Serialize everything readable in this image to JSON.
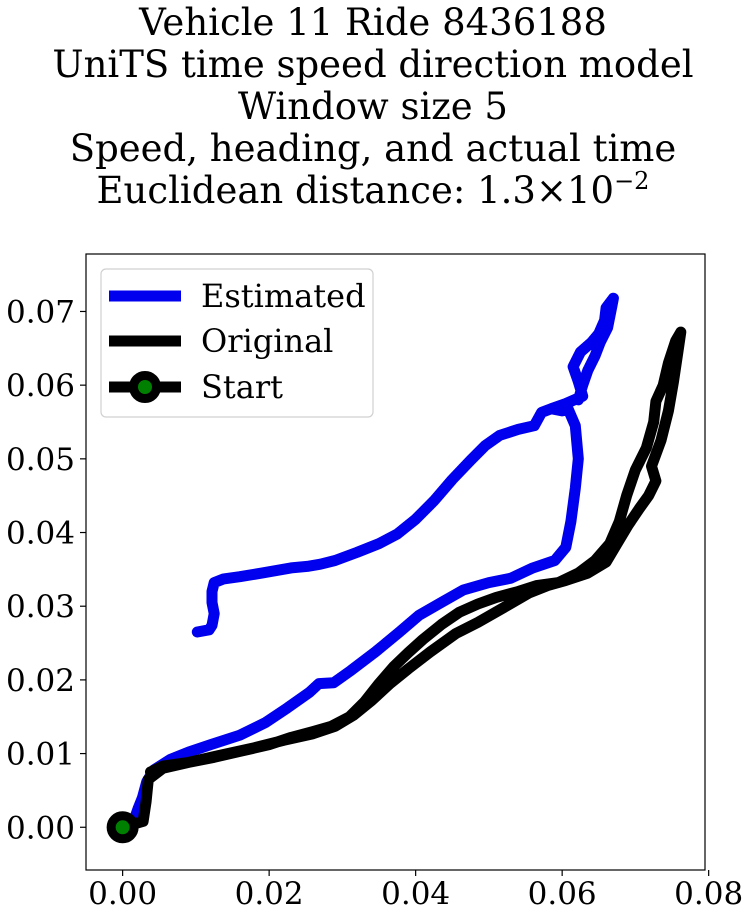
{
  "chart_data": {
    "type": "line",
    "title_lines": [
      "Vehicle 11 Ride 8436188",
      "UniTS time speed direction model",
      "Window size 5",
      "Speed, heading, and actual time"
    ],
    "title_distance_prefix": "Euclidean distance: 1.3",
    "title_distance_times": "×",
    "title_distance_base": "10",
    "title_distance_exponent": "−2",
    "xlabel": "",
    "ylabel": "",
    "xlim": [
      -0.005,
      0.0795
    ],
    "ylim": [
      -0.0058,
      0.0778
    ],
    "xticks": [
      0.0,
      0.02,
      0.04,
      0.06,
      0.08
    ],
    "xtick_labels": [
      "0.00",
      "0.02",
      "0.04",
      "0.06",
      "0.08"
    ],
    "yticks": [
      0.0,
      0.01,
      0.02,
      0.03,
      0.04,
      0.05,
      0.06,
      0.07
    ],
    "ytick_labels": [
      "0.00",
      "0.01",
      "0.02",
      "0.03",
      "0.04",
      "0.05",
      "0.06",
      "0.07"
    ],
    "legend_position": "upper-left",
    "series": [
      {
        "name": "Estimated",
        "color": "#0000ee",
        "points": [
          [
            0.0,
            0.0
          ],
          [
            0.0015,
            0.0008
          ],
          [
            0.0021,
            0.0025
          ],
          [
            0.0027,
            0.004
          ],
          [
            0.0033,
            0.0062
          ],
          [
            0.0043,
            0.0078
          ],
          [
            0.0065,
            0.0092
          ],
          [
            0.009,
            0.0102
          ],
          [
            0.012,
            0.0112
          ],
          [
            0.016,
            0.0125
          ],
          [
            0.0195,
            0.0142
          ],
          [
            0.0225,
            0.0162
          ],
          [
            0.0255,
            0.0183
          ],
          [
            0.0268,
            0.0195
          ],
          [
            0.0288,
            0.0196
          ],
          [
            0.0312,
            0.0213
          ],
          [
            0.0345,
            0.0238
          ],
          [
            0.0378,
            0.0265
          ],
          [
            0.0405,
            0.0288
          ],
          [
            0.0435,
            0.0305
          ],
          [
            0.0465,
            0.0322
          ],
          [
            0.05,
            0.0332
          ],
          [
            0.053,
            0.0338
          ],
          [
            0.056,
            0.0352
          ],
          [
            0.059,
            0.0362
          ],
          [
            0.0605,
            0.038
          ],
          [
            0.0612,
            0.0415
          ],
          [
            0.0618,
            0.046
          ],
          [
            0.0622,
            0.05
          ],
          [
            0.0618,
            0.0545
          ],
          [
            0.0608,
            0.0568
          ],
          [
            0.06,
            0.0565
          ],
          [
            0.0585,
            0.0568
          ],
          [
            0.0572,
            0.0563
          ],
          [
            0.0562,
            0.0545
          ],
          [
            0.054,
            0.054
          ],
          [
            0.0515,
            0.0532
          ],
          [
            0.0495,
            0.0518
          ],
          [
            0.0475,
            0.0498
          ],
          [
            0.045,
            0.0472
          ],
          [
            0.0425,
            0.0443
          ],
          [
            0.04,
            0.0418
          ],
          [
            0.0375,
            0.0398
          ],
          [
            0.035,
            0.0385
          ],
          [
            0.032,
            0.0373
          ],
          [
            0.029,
            0.0362
          ],
          [
            0.027,
            0.0357
          ],
          [
            0.0252,
            0.0354
          ],
          [
            0.023,
            0.0352
          ],
          [
            0.019,
            0.0345
          ],
          [
            0.016,
            0.034
          ],
          [
            0.0138,
            0.0337
          ],
          [
            0.0125,
            0.0332
          ],
          [
            0.0122,
            0.032
          ],
          [
            0.0122,
            0.0305
          ],
          [
            0.0125,
            0.029
          ],
          [
            0.0122,
            0.0274
          ],
          [
            0.0118,
            0.0268
          ],
          [
            0.0102,
            0.0265
          ],
          [
            0.0102,
            0.0265
          ],
          [
            0.0118,
            0.0268
          ],
          [
            0.0122,
            0.0274
          ],
          [
            0.0125,
            0.029
          ],
          [
            0.0122,
            0.0305
          ],
          [
            0.0122,
            0.032
          ],
          [
            0.0125,
            0.0332
          ],
          [
            0.0138,
            0.0337
          ],
          [
            0.016,
            0.034
          ],
          [
            0.019,
            0.0345
          ],
          [
            0.023,
            0.0352
          ],
          [
            0.0252,
            0.0354
          ],
          [
            0.027,
            0.0357
          ],
          [
            0.029,
            0.0362
          ],
          [
            0.032,
            0.0373
          ],
          [
            0.035,
            0.0385
          ],
          [
            0.0375,
            0.0398
          ],
          [
            0.04,
            0.0418
          ],
          [
            0.0425,
            0.0443
          ],
          [
            0.045,
            0.0472
          ],
          [
            0.0475,
            0.0498
          ],
          [
            0.0495,
            0.0518
          ],
          [
            0.0515,
            0.0532
          ],
          [
            0.054,
            0.054
          ],
          [
            0.0562,
            0.0545
          ],
          [
            0.0572,
            0.0563
          ],
          [
            0.0585,
            0.0568
          ],
          [
            0.0605,
            0.0575
          ],
          [
            0.0628,
            0.0585
          ],
          [
            0.0622,
            0.0605
          ],
          [
            0.0615,
            0.0625
          ],
          [
            0.0625,
            0.0645
          ],
          [
            0.064,
            0.0658
          ],
          [
            0.065,
            0.067
          ],
          [
            0.0658,
            0.0688
          ],
          [
            0.066,
            0.0705
          ],
          [
            0.067,
            0.0718
          ],
          [
            0.0668,
            0.0708
          ],
          [
            0.0662,
            0.0678
          ],
          [
            0.0652,
            0.0658
          ],
          [
            0.0645,
            0.064
          ],
          [
            0.0635,
            0.062
          ],
          [
            0.0628,
            0.06
          ],
          [
            0.0622,
            0.058
          ]
        ]
      },
      {
        "name": "Original",
        "color": "#000000",
        "points": [
          [
            0.0,
            0.0
          ],
          [
            0.0028,
            0.0008
          ],
          [
            0.0032,
            0.0035
          ],
          [
            0.0035,
            0.0065
          ],
          [
            0.0055,
            0.008
          ],
          [
            0.009,
            0.0088
          ],
          [
            0.013,
            0.0097
          ],
          [
            0.018,
            0.0108
          ],
          [
            0.022,
            0.0118
          ],
          [
            0.026,
            0.0127
          ],
          [
            0.029,
            0.0137
          ],
          [
            0.0315,
            0.0152
          ],
          [
            0.034,
            0.0172
          ],
          [
            0.0365,
            0.0195
          ],
          [
            0.039,
            0.0215
          ],
          [
            0.042,
            0.0238
          ],
          [
            0.0455,
            0.0263
          ],
          [
            0.0485,
            0.0278
          ],
          [
            0.052,
            0.0298
          ],
          [
            0.0555,
            0.0318
          ],
          [
            0.058,
            0.0328
          ],
          [
            0.0605,
            0.0335
          ],
          [
            0.0635,
            0.0345
          ],
          [
            0.066,
            0.036
          ],
          [
            0.0675,
            0.0385
          ],
          [
            0.069,
            0.041
          ],
          [
            0.0705,
            0.0432
          ],
          [
            0.0718,
            0.045
          ],
          [
            0.0728,
            0.047
          ],
          [
            0.0722,
            0.049
          ],
          [
            0.0735,
            0.0525
          ],
          [
            0.0745,
            0.0565
          ],
          [
            0.0752,
            0.0605
          ],
          [
            0.0758,
            0.0645
          ],
          [
            0.0762,
            0.0672
          ],
          [
            0.0762,
            0.0672
          ],
          [
            0.0755,
            0.066
          ],
          [
            0.0745,
            0.063
          ],
          [
            0.0738,
            0.06
          ],
          [
            0.0728,
            0.0578
          ],
          [
            0.0725,
            0.055
          ],
          [
            0.0715,
            0.0515
          ],
          [
            0.07,
            0.0485
          ],
          [
            0.0688,
            0.045
          ],
          [
            0.0678,
            0.0415
          ],
          [
            0.0665,
            0.0385
          ],
          [
            0.0645,
            0.0362
          ],
          [
            0.0622,
            0.0345
          ],
          [
            0.0595,
            0.0332
          ],
          [
            0.0565,
            0.0328
          ],
          [
            0.054,
            0.032
          ],
          [
            0.051,
            0.0312
          ],
          [
            0.0485,
            0.0303
          ],
          [
            0.046,
            0.0292
          ],
          [
            0.0435,
            0.0275
          ],
          [
            0.041,
            0.0255
          ],
          [
            0.039,
            0.0237
          ],
          [
            0.037,
            0.0218
          ],
          [
            0.035,
            0.0195
          ],
          [
            0.033,
            0.017
          ],
          [
            0.031,
            0.015
          ],
          [
            0.0285,
            0.0137
          ],
          [
            0.026,
            0.013
          ],
          [
            0.023,
            0.0122
          ],
          [
            0.02,
            0.0112
          ],
          [
            0.016,
            0.0103
          ],
          [
            0.0125,
            0.0095
          ],
          [
            0.009,
            0.0088
          ],
          [
            0.0055,
            0.0083
          ],
          [
            0.0038,
            0.0075
          ]
        ]
      },
      {
        "name": "Start",
        "color": "#000000",
        "marker_face": "#008000",
        "points": [
          [
            0.0,
            0.0
          ]
        ]
      }
    ]
  }
}
